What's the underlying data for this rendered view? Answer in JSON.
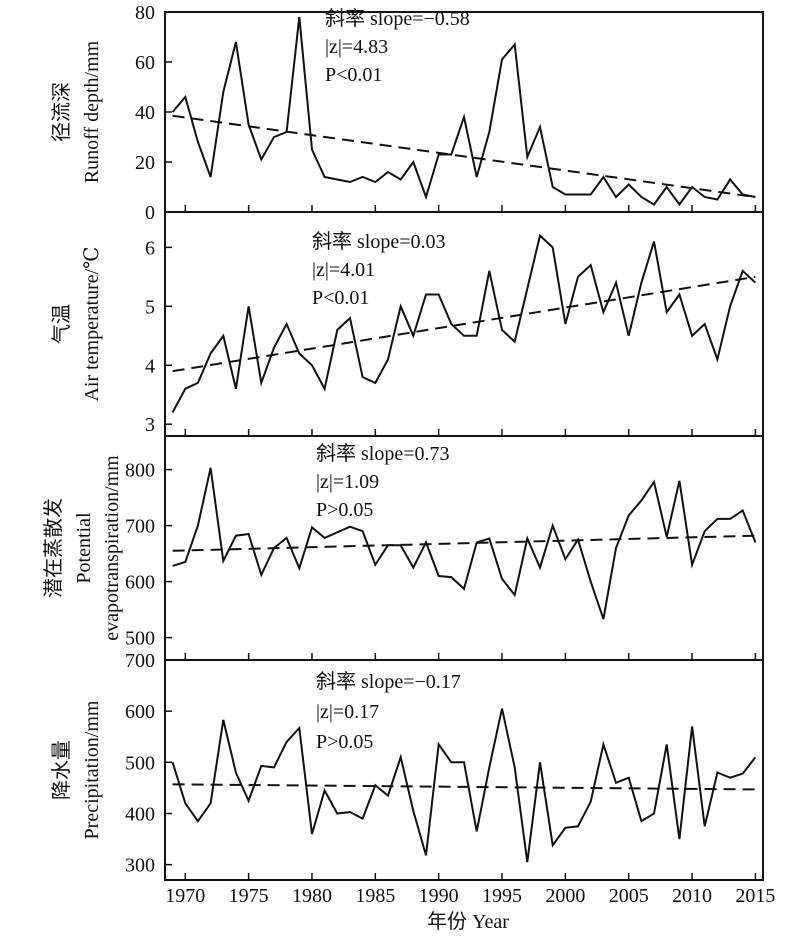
{
  "figure": {
    "xlabel": "年份 Year",
    "x_ticks": [
      1970,
      1975,
      1980,
      1985,
      1990,
      1995,
      2000,
      2005,
      2010,
      2015
    ]
  },
  "chart_data": [
    {
      "type": "line",
      "ylabel_zh": "径流深",
      "ylabel_en": "Runoff depth/mm",
      "ylim": [
        0,
        80
      ],
      "yticks": [
        0,
        20,
        40,
        60,
        80
      ],
      "annotation": [
        "斜率 slope=−0.58",
        "|z|=4.83",
        "P<0.01"
      ],
      "x": [
        1969,
        1970,
        1971,
        1972,
        1973,
        1974,
        1975,
        1976,
        1977,
        1978,
        1979,
        1980,
        1981,
        1982,
        1983,
        1984,
        1985,
        1986,
        1987,
        1988,
        1989,
        1990,
        1991,
        1992,
        1993,
        1994,
        1995,
        1996,
        1997,
        1998,
        1999,
        2000,
        2001,
        2002,
        2003,
        2004,
        2005,
        2006,
        2007,
        2008,
        2009,
        2010,
        2011,
        2012,
        2013,
        2014,
        2015
      ],
      "values": [
        40,
        46,
        28,
        14,
        48,
        68,
        35,
        21,
        30,
        32,
        78,
        25,
        14,
        13,
        12,
        14,
        12,
        16,
        13,
        20,
        6,
        23,
        23,
        38,
        14,
        32,
        61,
        67,
        22,
        34,
        10,
        7,
        7,
        7,
        14,
        6,
        11,
        6,
        3,
        10,
        3,
        10,
        6,
        5,
        13,
        7,
        6
      ],
      "trend": {
        "x": [
          1969,
          2015
        ],
        "y": [
          38.5,
          6
        ]
      }
    },
    {
      "type": "line",
      "ylabel_zh": "气温",
      "ylabel_en": "Air temperature/℃",
      "ylim": [
        2.8,
        6.6
      ],
      "yticks": [
        3,
        4,
        5,
        6
      ],
      "annotation": [
        "斜率 slope=0.03",
        "|z|=4.01",
        "P<0.01"
      ],
      "x": [
        1969,
        1970,
        1971,
        1972,
        1973,
        1974,
        1975,
        1976,
        1977,
        1978,
        1979,
        1980,
        1981,
        1982,
        1983,
        1984,
        1985,
        1986,
        1987,
        1988,
        1989,
        1990,
        1991,
        1992,
        1993,
        1994,
        1995,
        1996,
        1997,
        1998,
        1999,
        2000,
        2001,
        2002,
        2003,
        2004,
        2005,
        2006,
        2007,
        2008,
        2009,
        2010,
        2011,
        2012,
        2013,
        2014,
        2015
      ],
      "values": [
        3.2,
        3.6,
        3.7,
        4.2,
        4.5,
        3.6,
        5.0,
        3.7,
        4.3,
        4.7,
        4.2,
        4.0,
        3.6,
        4.6,
        4.8,
        3.8,
        3.7,
        4.1,
        5.0,
        4.5,
        5.2,
        5.2,
        4.7,
        4.5,
        4.5,
        5.6,
        4.6,
        4.4,
        5.3,
        6.2,
        6.0,
        4.7,
        5.5,
        5.7,
        4.9,
        5.4,
        4.5,
        5.4,
        6.1,
        4.9,
        5.2,
        4.5,
        4.7,
        4.1,
        5.0,
        5.6,
        5.4
      ],
      "trend": {
        "x": [
          1969,
          2015
        ],
        "y": [
          3.9,
          5.5
        ]
      }
    },
    {
      "type": "line",
      "ylabel_zh": "潜在蒸散发",
      "ylabel_en_1": "Potential",
      "ylabel_en_2": "evapotranspiration/mm",
      "ylim": [
        460,
        860
      ],
      "yticks": [
        500,
        600,
        700,
        800
      ],
      "annotation": [
        "斜率 slope=0.73",
        "|z|=1.09",
        "P>0.05"
      ],
      "x": [
        1969,
        1970,
        1971,
        1972,
        1973,
        1974,
        1975,
        1976,
        1977,
        1978,
        1979,
        1980,
        1981,
        1982,
        1983,
        1984,
        1985,
        1986,
        1987,
        1988,
        1989,
        1990,
        1991,
        1992,
        1993,
        1994,
        1995,
        1996,
        1997,
        1998,
        1999,
        2000,
        2001,
        2002,
        2003,
        2004,
        2005,
        2006,
        2007,
        2008,
        2009,
        2010,
        2011,
        2012,
        2013,
        2014,
        2015
      ],
      "values": [
        628,
        635,
        700,
        803,
        637,
        682,
        685,
        612,
        660,
        678,
        624,
        697,
        678,
        688,
        698,
        690,
        630,
        665,
        665,
        625,
        670,
        610,
        608,
        587,
        670,
        677,
        605,
        576,
        677,
        625,
        700,
        640,
        675,
        600,
        533,
        660,
        718,
        745,
        778,
        680,
        780,
        630,
        690,
        712,
        712,
        727,
        670
      ],
      "trend": {
        "x": [
          1969,
          2015
        ],
        "y": [
          655,
          682
        ]
      }
    },
    {
      "type": "line",
      "ylabel_zh": "降水量",
      "ylabel_en": "Precipitation/mm",
      "ylim": [
        270,
        700
      ],
      "yticks": [
        300,
        400,
        500,
        600,
        700
      ],
      "annotation": [
        "斜率 slope=−0.17",
        "|z|=0.17",
        "P>0.05"
      ],
      "x": [
        1969,
        1970,
        1971,
        1972,
        1973,
        1974,
        1975,
        1976,
        1977,
        1978,
        1979,
        1980,
        1981,
        1982,
        1983,
        1984,
        1985,
        1986,
        1987,
        1988,
        1989,
        1990,
        1991,
        1992,
        1993,
        1994,
        1995,
        1996,
        1997,
        1998,
        1999,
        2000,
        2001,
        2002,
        2003,
        2004,
        2005,
        2006,
        2007,
        2008,
        2009,
        2010,
        2011,
        2012,
        2013,
        2014,
        2015
      ],
      "values": [
        500,
        420,
        385,
        420,
        583,
        480,
        425,
        493,
        490,
        540,
        567,
        360,
        445,
        400,
        403,
        390,
        455,
        435,
        510,
        405,
        318,
        535,
        500,
        500,
        365,
        490,
        605,
        490,
        305,
        500,
        338,
        372,
        375,
        423,
        535,
        460,
        470,
        385,
        400,
        535,
        350,
        570,
        375,
        480,
        470,
        478,
        510
      ],
      "trend": {
        "x": [
          1969,
          2015
        ],
        "y": [
          457,
          447
        ]
      }
    }
  ]
}
